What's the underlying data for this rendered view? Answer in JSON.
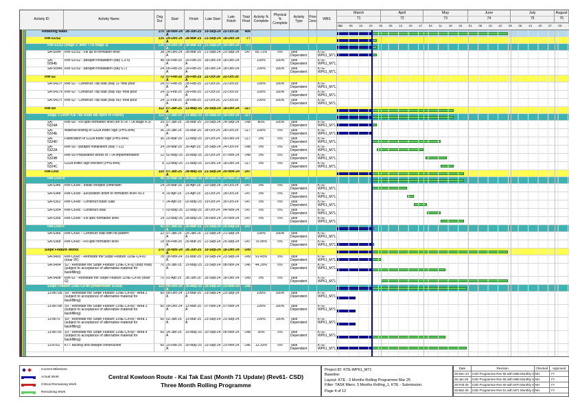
{
  "colors": {
    "actual_bar": "#1515a3",
    "remaining_bar": "#63cf63",
    "critical_bar": "#cc2222",
    "data_date_line": "#0000a0",
    "group_blue": "#b9d9ec",
    "group_yellow": "#ffff4d",
    "group_teal": "#41b2b2"
  },
  "table": {
    "columns": [
      "Activity ID",
      "Activity Name",
      "Orig Dur",
      "Start",
      "Finish",
      "Late Start",
      "Late Finish",
      "Total Float",
      "Activity % Complete",
      "Physical % Complete",
      "Activity Type",
      "Prim Const",
      "WBS"
    ],
    "rows": [
      {
        "id": "",
        "name": "Retaining Walls",
        "lv": 1,
        "od": "170",
        "s": "18-Nov-24 A",
        "f": "28-Jun-25",
        "ls": "19-Sep-24",
        "lf": "22-Oct-26",
        "tf": "406",
        "ap": "",
        "pp": "",
        "ty": "",
        "wbs": ""
      },
      {
        "id": "",
        "name": "RW-S1/S2",
        "lv": 2,
        "od": "135",
        "s": "24-Dec-24 A",
        "f": "28-Mar-25",
        "ls": "21-Sep-24",
        "lf": "18-Dec-24",
        "tf": "-77",
        "ap": "",
        "pp": "",
        "ty": "",
        "wbs": ""
      },
      {
        "id": "",
        "name": "RW-S1/S2 (stage 2- after TTA stage 3)",
        "lv": 3,
        "od": "135",
        "s": "24-Dec-24 A",
        "f": "28-Mar-25",
        "ls": "21-Sep-24",
        "lf": "18-Dec-24",
        "tf": "-77",
        "ap": "",
        "pp": "",
        "ty": "",
        "wbs": ""
      },
      {
        "id": "SA-5094",
        "name": "RW-S1/S2 - Fill up to formation level",
        "lv": 0,
        "od": "28",
        "s": "24-Dec-24 A",
        "f": "28-Mar-25",
        "ls": "21-Sep-24",
        "lf": "23-Sep-24",
        "tf": "-147",
        "ap": "85.71%",
        "pp": "0%",
        "ty": "Task Dependent",
        "wbs": "KTE-WP61_M71.0"
      },
      {
        "id": "SA-5094b",
        "name": "RW-S1/S2 - parapet installation (bay 1,3-5)",
        "lv": 0,
        "od": "48",
        "s": "05-Feb-25 A",
        "f": "26-Feb-25 A",
        "ls": "18-Dec-24",
        "lf": "18-Dec-24",
        "tf": "",
        "ap": "100%",
        "pp": "100%",
        "ty": "Task Dependent",
        "wbs": "KTE-WP61_M71.0"
      },
      {
        "id": "SA-5094c",
        "name": "RW-S1/S2 - parapet installation (bay 6,7)",
        "lv": 0,
        "od": "24",
        "s": "05-Feb-25 A",
        "f": "26-Feb-25 A",
        "ls": "18-Dec-24",
        "lf": "18-Dec-24",
        "tf": "",
        "ap": "100%",
        "pp": "100%",
        "ty": "Task Dependent",
        "wbs": "KTE-WP61_M71.0"
      },
      {
        "id": "",
        "name": "RW-S2",
        "lv": 2,
        "od": "72",
        "s": "07-Feb-25 A",
        "f": "28-Feb-25 A",
        "ls": "22-Oct-26",
        "lf": "22-Oct-26",
        "tf": "",
        "ap": "",
        "pp": "",
        "ty": "",
        "wbs": ""
      },
      {
        "id": "SA-5427r",
        "name": "RW-S2 - Construct Top slab (Bay 1)- final pour",
        "lv": 0,
        "od": "24",
        "s": "07-Feb-25 A",
        "f": "28-Feb-25 A",
        "ls": "22-Oct-26",
        "lf": "22-Oct-26",
        "tf": "",
        "ap": "100%",
        "pp": "100%",
        "ty": "Task Dependent",
        "wbs": "KTE-WP61_M71.0"
      },
      {
        "id": "SA-5427s",
        "name": "RW-S2 - Construct Top slab (Bay 0a)- final pour",
        "lv": 0,
        "od": "24",
        "s": "11-Feb-25 A",
        "f": "28-Feb-25 A",
        "ls": "22-Oct-26",
        "lf": "22-Oct-26",
        "tf": "",
        "ap": "100%",
        "pp": "100%",
        "ty": "Task Dependent",
        "wbs": "KTE-WP61_M71.0"
      },
      {
        "id": "SA-5427t",
        "name": "RW-S2 - Construct Top slab (Bay 06)- final pour",
        "lv": 0,
        "od": "24",
        "s": "11-Feb-25 A",
        "f": "28-Feb-25 A",
        "ls": "22-Oct-26",
        "lf": "22-Oct-26",
        "tf": "",
        "ap": "100%",
        "pp": "100%",
        "ty": "Task Dependent",
        "wbs": "KTE-WP61_M71.0"
      },
      {
        "id": "",
        "name": "RW-S9",
        "lv": 2,
        "od": "112",
        "s": "07-Jan-25 A",
        "f": "21-May-25",
        "ls": "20-Sep-24",
        "lf": "18-Dec-24",
        "tf": "-117",
        "ap": "",
        "pp": "",
        "ty": "",
        "wbs": ""
      },
      {
        "id": "",
        "name": "Stage 3 (After Kai Tak Road NB open to Public)",
        "lv": 3,
        "od": "112",
        "s": "07-Jan-25 A",
        "f": "21-May-25",
        "ls": "20-Sep-24",
        "lf": "18-Dec-24",
        "tf": "-117",
        "ap": "",
        "pp": "",
        "ty": "",
        "wbs": ""
      },
      {
        "id": "SA-5324A",
        "name": "RW-S9 - Fill upto formation level (for KTR TTA stage 4.3)",
        "lv": 0,
        "od": "29",
        "s": "07-Jan-25 A",
        "f": "28-Mar-25",
        "ls": "20-Sep-24",
        "lf": "24-Sep-24",
        "tf": "-148",
        "ap": "80%",
        "pp": "100%",
        "ty": "Task Dependent",
        "wbs": "KTE-WP61_M71.0"
      },
      {
        "id": "SA-5324E",
        "name": "Material testing of G32A traffic sign (PHS-844)",
        "lv": 0,
        "od": "36",
        "s": "25-Jan-25 A",
        "f": "25-Mar-25",
        "ls": "28-Oct-24",
        "lf": "28-Oct-24",
        "tf": "-117",
        "ap": "100%",
        "pp": "0%",
        "ty": "Task Dependent",
        "wbs": "KTE-WP61_M71.0"
      },
      {
        "id": "SA-5324D",
        "name": "Fabrication of G32A traffic sign (PHS-844)",
        "lv": 0,
        "od": "36",
        "s": "25-Mar-25",
        "f": "12-May-25",
        "ls": "29-Oct-24",
        "lf": "09-Dec-24",
        "tf": "-117",
        "ap": "0%",
        "pp": "0%",
        "ty": "Task Dependent",
        "wbs": "KTE-WP61_M71.0"
      },
      {
        "id": "SA-5322A",
        "name": "RW-S9 - parapet installation (bay 7-11)",
        "lv": 0,
        "od": "24",
        "s": "29-Mar-25",
        "f": "30-Apr-25",
        "ls": "25-Sep-24",
        "lf": "24-Oct-24",
        "tf": "-148",
        "ap": "0%",
        "pp": "0%",
        "ty": "Task Dependent",
        "wbs": "KTE-WP61_M71.0"
      },
      {
        "id": "SA-5324B",
        "name": "RW-S9 Preparation works of TTA implementation",
        "lv": 0,
        "od": "12",
        "s": "02-May-25",
        "f": "16-May-25",
        "ls": "25-Oct-24",
        "lf": "07-Nov-24",
        "tf": "-148",
        "ap": "0%",
        "pp": "0%",
        "ty": "Task Dependent",
        "wbs": "KTE-WP61_M71.0"
      },
      {
        "id": "SA-5324C",
        "name": "G32A traffic sign erection (PHS-844)",
        "lv": 0,
        "od": "8",
        "s": "13-May-25",
        "f": "21-May-25",
        "ls": "10-Dec-24",
        "lf": "18-Dec-24",
        "tf": "-117",
        "ap": "0%",
        "pp": "0%",
        "ty": "Task Dependent",
        "wbs": "KTE-WP61_M71.0"
      },
      {
        "id": "",
        "name": "RW-CKR",
        "lv": 2,
        "od": "110",
        "s": "07-Jan-25 A",
        "f": "28-May-25",
        "ls": "21-Sep-24",
        "lf": "20-Nov-24",
        "tf": "-147",
        "ap": "",
        "pp": "",
        "ty": "",
        "wbs": ""
      },
      {
        "id": "",
        "name": "RW-CKR-b",
        "lv": 3,
        "od": "46",
        "s": "25-Mar-25",
        "f": "28-May-25",
        "ls": "20-Sep-24",
        "lf": "20-Nov-24",
        "tf": "-147",
        "ap": "",
        "pp": "",
        "ty": "",
        "wbs": ""
      },
      {
        "id": "SA-5346",
        "name": "RW-CKRb - Install shotpile cofferdam",
        "lv": 0,
        "od": "14",
        "s": "25-Mar-25",
        "f": "18-Apr-25",
        "ls": "20-Sep-24",
        "lf": "14-Oct-24",
        "tf": "-147",
        "ap": "0%",
        "pp": "0%",
        "ty": "Task Dependent",
        "wbs": "KTE-WP61_M71.0"
      },
      {
        "id": "SA-5348",
        "name": "RW-CKRb - Excavation down to formation level +8.3",
        "lv": 0,
        "od": "4",
        "s": "19-Apr-25",
        "f": "23-Apr-25",
        "ls": "15-Oct-24",
        "lf": "18-Oct-24",
        "tf": "-147",
        "ap": "0%",
        "pp": "0%",
        "ty": "Task Dependent",
        "wbs": "KTE-WP61_M71.0"
      },
      {
        "id": "SA-5352",
        "name": "RW-CKRb - Construct Base Slab",
        "lv": 0,
        "od": "7",
        "s": "24-Apr-25",
        "f": "02-May-25",
        "ls": "19-Oct-24",
        "lf": "30-Oct-24",
        "tf": "-147",
        "ap": "0%",
        "pp": "0%",
        "ty": "Task Dependent",
        "wbs": "KTE-WP61_M71.0"
      },
      {
        "id": "SA-5354",
        "name": "RW-CKRb - Construct Wall",
        "lv": 0,
        "od": "7",
        "s": "03-May-25",
        "f": "12-May-25",
        "ls": "28-Oct-24",
        "lf": "04-Nov-24",
        "tf": "-147",
        "ap": "0%",
        "pp": "0%",
        "ty": "Task Dependent",
        "wbs": "KTE-WP61_M71.0"
      },
      {
        "id": "SA-5356",
        "name": "RW-CKRb - Fill upto formation level",
        "lv": 0,
        "od": "14",
        "s": "13-May-25",
        "f": "28-May-25",
        "ls": "05-Nov-24",
        "lf": "20-Nov-24",
        "tf": "-147",
        "ap": "0%",
        "pp": "0%",
        "ty": "Task Dependent",
        "wbs": "KTE-WP61_M71.0"
      },
      {
        "id": "",
        "name": "RW-CKR-c",
        "lv": 3,
        "od": "41",
        "s": "07-Jan-25 A",
        "f": "26-Mar-25",
        "ls": "21-Sep-24",
        "lf": "25-Sep-24",
        "tf": "-147",
        "ap": "",
        "pp": "",
        "ty": "",
        "wbs": ""
      },
      {
        "id": "SA-5366",
        "name": "RW-CKRc - Construct Wall with rib pattern",
        "lv": 0,
        "od": "22",
        "s": "07-Jan-25 A",
        "f": "25-Jan-25 A",
        "ls": "21-Sep-24",
        "lf": "21-Sep-24",
        "tf": "",
        "ap": "100%",
        "pp": "100%",
        "ty": "Task Dependent",
        "wbs": "KTE-WP61_M71.0"
      },
      {
        "id": "SA-5368",
        "name": "RW-CKRc - Fill upto formation level",
        "lv": 0,
        "od": "19",
        "s": "05-Feb-25 A",
        "f": "26-Mar-25",
        "ls": "21-Sep-24",
        "lf": "25-Sep-24",
        "tf": "-147",
        "ap": "76.95%",
        "pp": "0%",
        "ty": "Task Dependent",
        "wbs": "KTE-WP61_M71.0"
      },
      {
        "id": "",
        "name": "Slope Feature Works",
        "lv": 2,
        "od": "170",
        "s": "18-Nov-24 A",
        "f": "28-Jun-25",
        "ls": "19-Sep-24",
        "lf": "18-Dec-24",
        "tf": "-149",
        "ap": "",
        "pp": "",
        "ty": "",
        "wbs": ""
      },
      {
        "id": "SA-5403",
        "name": "RW-CKRc - Reinstate the Slope Feature 11NE-C/F91 (near 2F)",
        "lv": 0,
        "od": "78",
        "s": "18-Nov-24 A",
        "f": "31-Mar-25",
        "ls": "19-Sep-24",
        "lf": "23-Sep-24",
        "tf": "-149",
        "ap": "91.43%",
        "pp": "0%",
        "ty": "Task Dependent",
        "wbs": "KTE-WP61_M71.0"
      },
      {
        "id": "SA-5404",
        "name": "S2 - Reinstate the Slope Feature 11NE-C/F92 (loop road)(subject to acceptance of alternative material for backfilling)",
        "lv": 0,
        "tall": true,
        "od": "70",
        "s": "25-Jan-25 A",
        "f": "15-May-25",
        "ls": "23-Sep-24",
        "lf": "08-Nov-24",
        "tf": "-146",
        "ap": "44.29%",
        "pp": "0%",
        "ty": "Task Dependent",
        "wbs": "KTE-WP61_M71.0"
      },
      {
        "id": "SA-5408",
        "name": "RW-S1 - Reinstate the Slope Feature 11NE-C/F90 (near G)",
        "lv": 0,
        "od": "70",
        "s": "01-Apr-25",
        "f": "28-Jun-25",
        "ls": "26-Sep-24",
        "lf": "18-Dec-24",
        "tf": "-149",
        "ap": "0%",
        "pp": "0%",
        "ty": "Task Dependent",
        "wbs": "KTE-WP61_M71.0"
      },
      {
        "id": "",
        "name": "Slope Feature 11NE-C/F89 (underneath S1/S9)",
        "lv": 3,
        "od": "115",
        "s": "09-Dec-24 A",
        "f": "30-May-25",
        "ls": "20-Sep-24",
        "lf": "23-Nov-24",
        "tf": "-146",
        "ap": "",
        "pp": "",
        "ty": "",
        "wbs": ""
      },
      {
        "id": "13-8670a",
        "name": "S9 - Reinstate the Slope Feature 11NE-C/F89 - Area 2 (subject to acceptance of alternative material for backfilling)",
        "lv": 0,
        "tall": true,
        "od": "60",
        "s": "09-Dec-24 A",
        "f": "13-Mar-25 A",
        "ls": "23-Sep-24",
        "lf": "23-Sep-24",
        "tf": "",
        "ap": "100%",
        "pp": "100%",
        "ty": "Task Dependent",
        "wbs": "KTE-WP61_M71.0"
      },
      {
        "id": "13-8670b",
        "name": "S9 - Reinstate the Slope Feature 11NE-C/F89 - Area 3 (subject to acceptance of alternative material for backfilling)",
        "lv": 0,
        "tall": true,
        "od": "60",
        "s": "09-Dec-24 A",
        "f": "13-Mar-25 A",
        "ls": "07-Nov-24",
        "lf": "07-Nov-24",
        "tf": "",
        "ap": "100%",
        "pp": "100%",
        "ty": "Task Dependent",
        "wbs": "KTE-WP61_M71.0"
      },
      {
        "id": "13-8670",
        "name": "S9 - Reinstate the Slope Feature 11NE-C/F89 - Area 1 (subject to acceptance of alternative material for backfilling)",
        "lv": 0,
        "tall": true,
        "od": "60",
        "s": "02-Jan-25 A",
        "f": "13-Mar-25 A",
        "ls": "23-Sep-24",
        "lf": "23-Sep-24",
        "tf": "",
        "ap": "100%",
        "pp": "100%",
        "ty": "Task Dependent",
        "wbs": "KTE-WP61_M71.0"
      },
      {
        "id": "13-8670c",
        "name": "S9 - Reinstate the Slope Feature 11NE-C/F89 - Area 4 (subject to acceptance of alternative material for backfilling)",
        "lv": 0,
        "tall": true,
        "od": "60",
        "s": "14-Jan-25 A",
        "f": "15-May-25",
        "ls": "20-Sep-24",
        "lf": "06-Nov-24",
        "tf": "-148",
        "ap": "35%",
        "pp": "0%",
        "ty": "Task Dependent",
        "wbs": "KTE-WP61_M71.0"
      },
      {
        "id": "13-8752",
        "name": "KTT ducting and drawpit construction",
        "lv": 0,
        "od": "60",
        "s": "10-Feb-25 A",
        "f": "30-May-25",
        "ls": "23-Sep-24",
        "lf": "23-Nov-24",
        "tf": "-146",
        "ap": "13.33%",
        "pp": "0%",
        "ty": "Task Dependent",
        "wbs": "KTE-WP61_M71.0"
      }
    ]
  },
  "gantt": {
    "window_start": "01-Mar-25",
    "window_end": "10-Aug-25",
    "data_date": "25-Mar-25",
    "months": [
      {
        "label": "March",
        "num": "71",
        "days": 31
      },
      {
        "label": "April",
        "num": "72",
        "days": 30
      },
      {
        "label": "May",
        "num": "73",
        "days": 31
      },
      {
        "label": "June",
        "num": "74",
        "days": 30
      },
      {
        "label": "July",
        "num": "75",
        "days": 31
      },
      {
        "label": "August",
        "num": "76",
        "days": 10
      }
    ],
    "week_ticks": [
      "01-Mar-25",
      "02-Mar-25",
      "09-Mar-25",
      "16-Mar-25",
      "23-Mar-25",
      "30-Mar-25",
      "06-Apr-25",
      "13-Apr-25",
      "20-Apr-25",
      "27-Apr-25",
      "04-May-25",
      "11-May-25",
      "18-May-25",
      "25-May-25",
      "01-Jun-25",
      "08-Jun-25",
      "15-Jun-25",
      "22-Jun-25",
      "29-Jun-25",
      "06-Jul-25",
      "13-Jul-25",
      "20-Jul-25",
      "27-Jul-25",
      "03-Aug-25",
      "10-Aug-25"
    ]
  },
  "legend": [
    {
      "icon": "milestone",
      "label": "Current Milestone"
    },
    {
      "icon": "actual",
      "label": "Actual Work"
    },
    {
      "icon": "critical",
      "label": "Critical Remaining Work"
    },
    {
      "icon": "remaining",
      "label": "Remaining Work"
    }
  ],
  "title_block": {
    "line1": "Central Kowloon Route - Kai Tak East (Month 71 Update) (Rev61- CSD)",
    "line2": "Three Month Rolling Programme"
  },
  "info_block": {
    "project_id": "Project ID: KTE-WP61_M71",
    "baseline": "Baseline:",
    "layout": "Layout: KTE - 3 Months Rolling Programme Mar 25",
    "filter": "Filter: TASK filters: 3 Months Rolling_1, KTE - Submission.",
    "page": "Page 4 of 12"
  },
  "revision_table": {
    "headers": [
      "Date",
      "Revision",
      "Checked",
      "Approved"
    ],
    "rows": [
      [
        "25-Dec-24",
        "CSD Programme Rev 58 with M68 Monthly Up..",
        "NH",
        "YY"
      ],
      [
        "25-Jan-25",
        "CSD Programme Rev 59 with M69 Monthly Up..",
        "NH",
        "YY"
      ],
      [
        "25-Feb-25",
        "CSD Programme Rev 60 with M70 Monthly Up..",
        "NH",
        "YY"
      ],
      [
        "25-Mar-25",
        "CSD Programme Rev 61 with M71 Monthly Up..",
        "NH",
        "YY"
      ]
    ]
  }
}
